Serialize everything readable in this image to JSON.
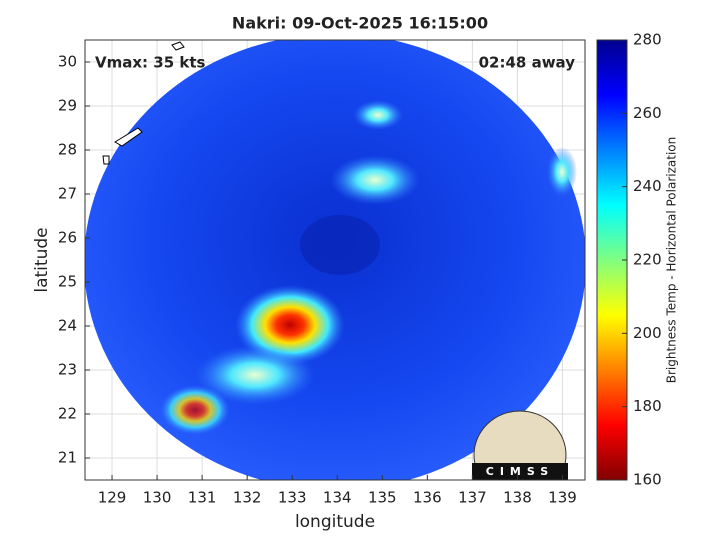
{
  "chart_data": {
    "type": "heatmap",
    "title": "Nakri: 09-Oct-2025 16:15:00",
    "annotations": [
      "Vmax: 35 kts",
      "02:48 away"
    ],
    "xlabel": "longitude",
    "ylabel": "latitude",
    "xlim": [
      128.4,
      139.5
    ],
    "ylim": [
      20.5,
      30.5
    ],
    "xticks": [
      129,
      130,
      131,
      132,
      133,
      134,
      135,
      136,
      137,
      138,
      139
    ],
    "yticks": [
      21,
      22,
      23,
      24,
      25,
      26,
      27,
      28,
      29,
      30
    ],
    "grid": true,
    "colorbar": {
      "label": "Brightness Temp - Horizontal Polarization",
      "lim": [
        160,
        280
      ],
      "ticks": [
        160,
        180,
        200,
        220,
        240,
        260,
        280
      ],
      "colormap": [
        "#800000",
        "#ff0000",
        "#ff8000",
        "#ffff00",
        "#80ff80",
        "#00ffff",
        "#0080ff",
        "#0000ff",
        "#00008f"
      ]
    },
    "logo": "CIMSS"
  }
}
